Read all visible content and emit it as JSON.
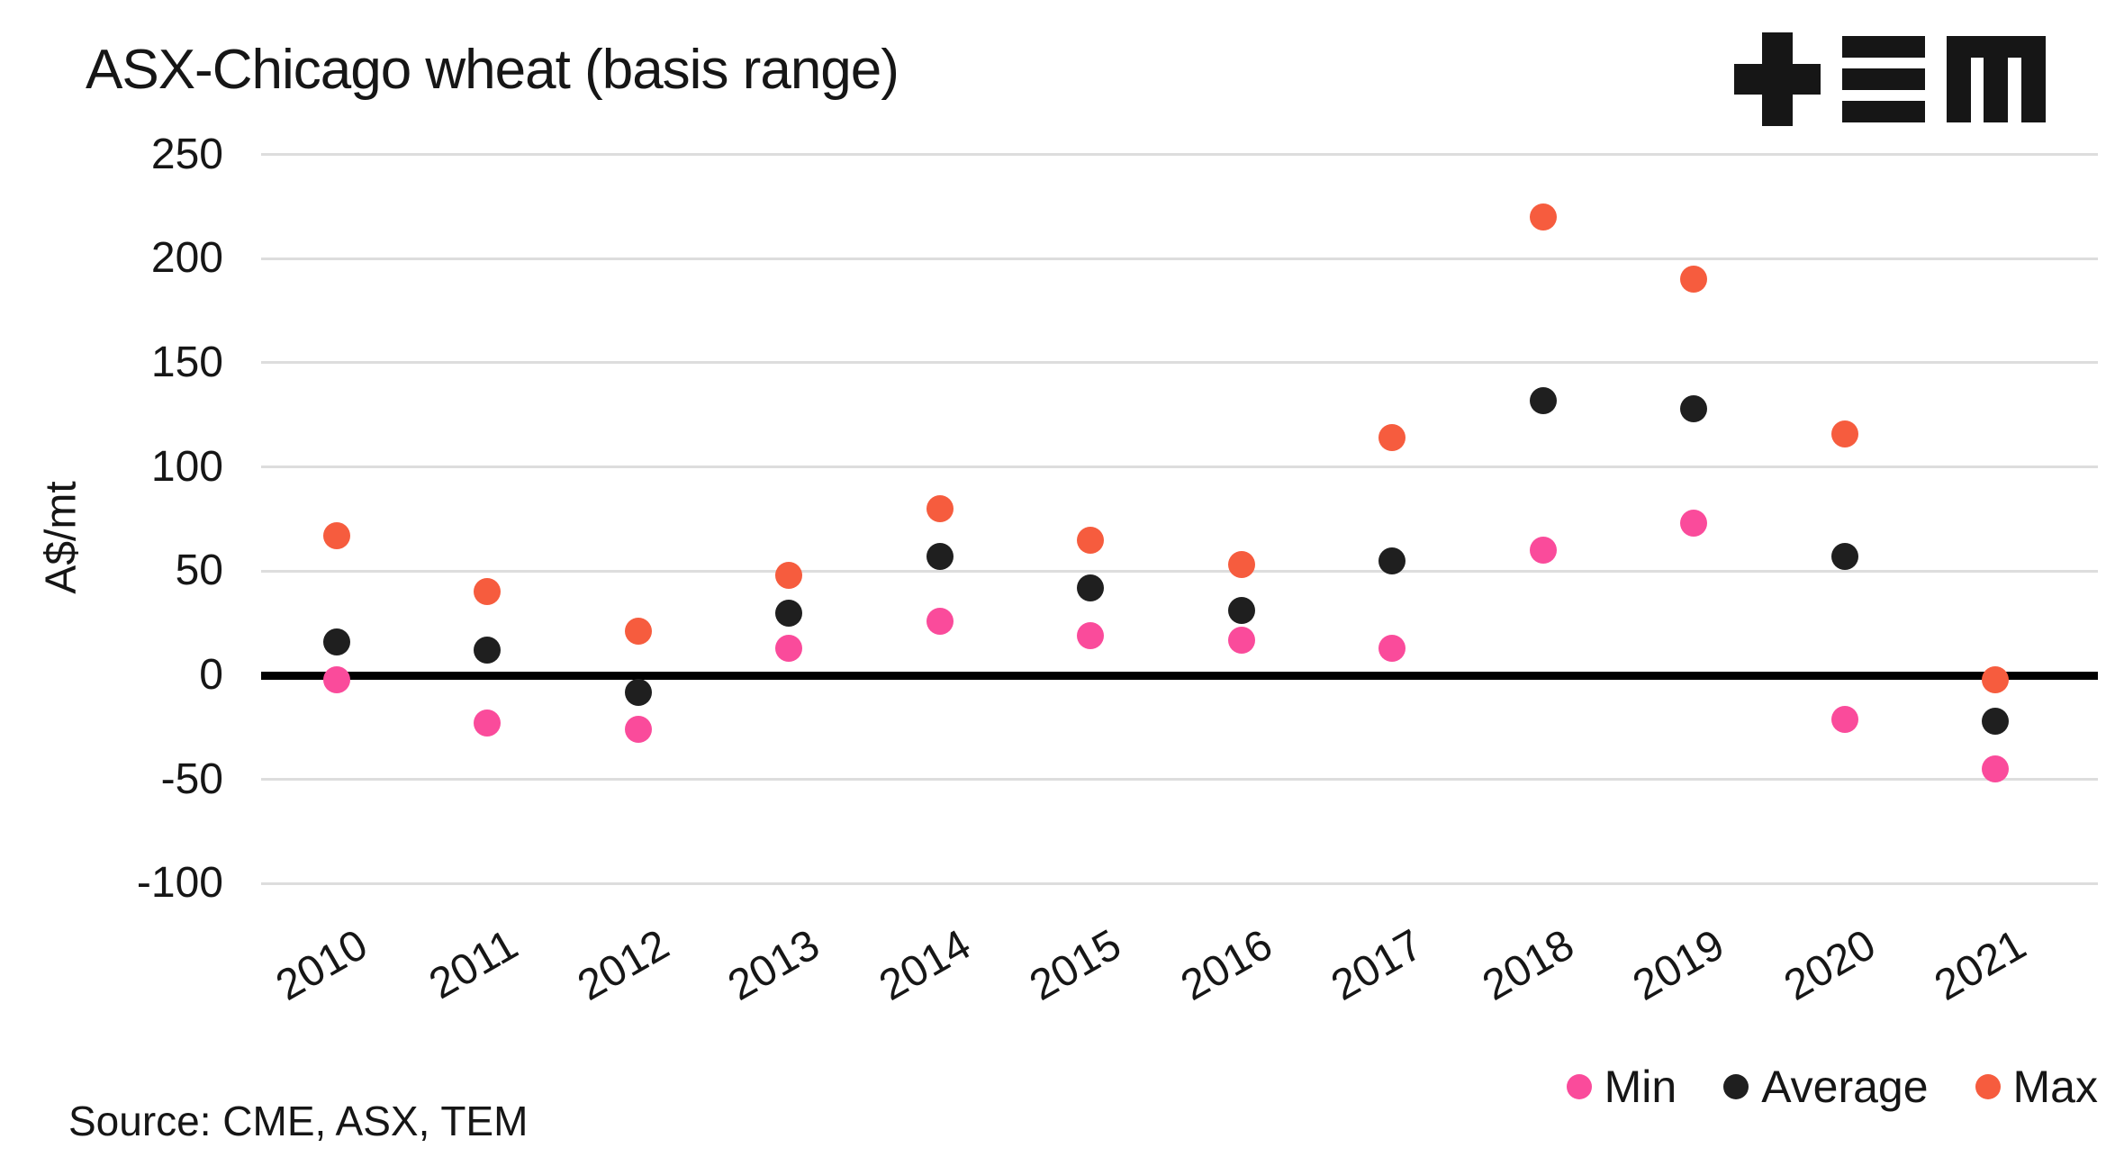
{
  "title": "ASX-Chicago wheat (basis range)",
  "source": "Source: CME, ASX, TEM",
  "logo": {
    "name": "TEM-logo",
    "color": "#161616"
  },
  "colors": {
    "min": "#FA4B9B",
    "average": "#1F1F1F",
    "max": "#F65C3E",
    "gridline": "#DDDDDD",
    "zero_line": "#000000"
  },
  "legend": {
    "items": [
      {
        "label": "Min",
        "color_key": "min"
      },
      {
        "label": "Average",
        "color_key": "average"
      },
      {
        "label": "Max",
        "color_key": "max"
      }
    ]
  },
  "chart_data": {
    "type": "scatter",
    "title": "ASX-Chicago wheat (basis range)",
    "xlabel": "",
    "ylabel": "A$/mt",
    "categories": [
      "2010",
      "2011",
      "2012",
      "2013",
      "2014",
      "2015",
      "2016",
      "2017",
      "2018",
      "2019",
      "2020",
      "2021"
    ],
    "series": [
      {
        "name": "Min",
        "color_key": "min",
        "values": [
          -2,
          -23,
          -26,
          13,
          26,
          19,
          17,
          13,
          60,
          73,
          -21,
          -45
        ]
      },
      {
        "name": "Average",
        "color_key": "average",
        "values": [
          16,
          12,
          -8,
          30,
          57,
          42,
          31,
          55,
          132,
          128,
          57,
          -22
        ]
      },
      {
        "name": "Max",
        "color_key": "max",
        "values": [
          67,
          40,
          21,
          48,
          80,
          65,
          53,
          114,
          220,
          190,
          116,
          -2
        ]
      }
    ],
    "ylim": [
      -100,
      250
    ],
    "yticks": [
      250,
      200,
      150,
      100,
      50,
      0,
      -50,
      -100
    ],
    "grid": "horizontal",
    "zero_line": true,
    "legend_position": "bottom-right"
  }
}
